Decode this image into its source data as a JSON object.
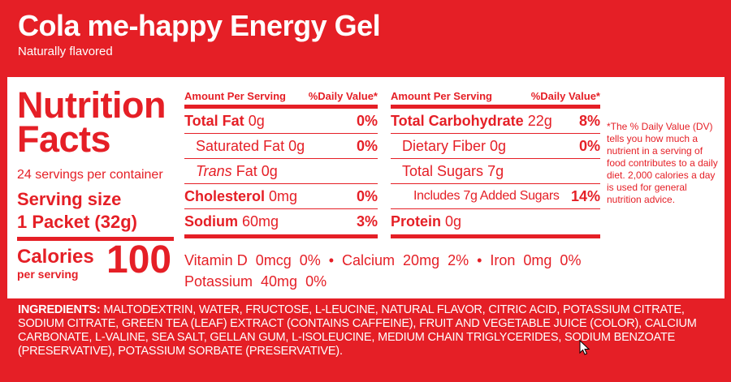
{
  "product": {
    "title": "Cola me-happy Energy Gel",
    "subtitle": "Naturally flavored"
  },
  "nutrition": {
    "heading_line1": "Nutrition",
    "heading_line2": "Facts",
    "servings_per_container": "24 servings per container",
    "serving_size_label": "Serving size",
    "serving_size_value": "1 Packet (32g)",
    "calories_label": "Calories",
    "calories_sub": "per serving",
    "calories_value": "100",
    "left_table": {
      "header_amount": "Amount Per Serving",
      "header_dv": "%Daily Value*",
      "rows": [
        {
          "label": "Total Fat",
          "amount": "0g",
          "dv": "0%"
        },
        {
          "label": "Saturated Fat",
          "amount": "0g",
          "dv": "0%"
        },
        {
          "label_italic": "Trans",
          "label": "Fat",
          "amount": "0g",
          "dv": ""
        },
        {
          "label": "Cholesterol",
          "amount": "0mg",
          "dv": "0%"
        },
        {
          "label": "Sodium",
          "amount": "60mg",
          "dv": "3%"
        }
      ]
    },
    "right_table": {
      "header_amount": "Amount Per Serving",
      "header_dv": "%Daily Value*",
      "rows": [
        {
          "label": "Total Carbohydrate",
          "amount": "22g",
          "dv": "8%"
        },
        {
          "label": "Dietary Fiber",
          "amount": "0g",
          "dv": "0%"
        },
        {
          "label": "Total Sugars",
          "amount": "7g",
          "dv": ""
        },
        {
          "label": "Includes 7g Added Sugars",
          "amount": "",
          "dv": "14%"
        },
        {
          "label": "Protein",
          "amount": "0g",
          "dv": ""
        }
      ]
    },
    "vitamins_line1": "Vitamin D  0mcg  0%  •  Calcium  20mg  2%  •  Iron  0mg  0%",
    "vitamins_line2": "Potassium  40mg  0%",
    "footnote": "*The % Daily Value (DV) tells you how much a nutrient in a serving of food contributes to a daily diet. 2,000 calories a day is used for general nutrition advice."
  },
  "ingredients": {
    "label": "INGREDIENTS:",
    "text": "MALTODEXTRIN, WATER, FRUCTOSE, L-LEUCINE, NATURAL FLAVOR, CITRIC ACID, POTASSIUM CITRATE, SODIUM CITRATE, GREEN TEA (LEAF) EXTRACT (CONTAINS CAFFEINE), FRUIT AND VEGETABLE JUICE (COLOR), CALCIUM CARBONATE, L-VALINE, SEA SALT, GELLAN GUM, L-ISOLEUCINE, MEDIUM CHAIN TRIGLYCERIDES, SODIUM BENZOATE (PRESERVATIVE), POTASSIUM SORBATE (PRESERVATIVE)."
  },
  "colors": {
    "brand_red": "#e51f26",
    "panel_bg": "#ffffff"
  },
  "icons": {
    "cursor": "mouse-pointer-icon"
  }
}
